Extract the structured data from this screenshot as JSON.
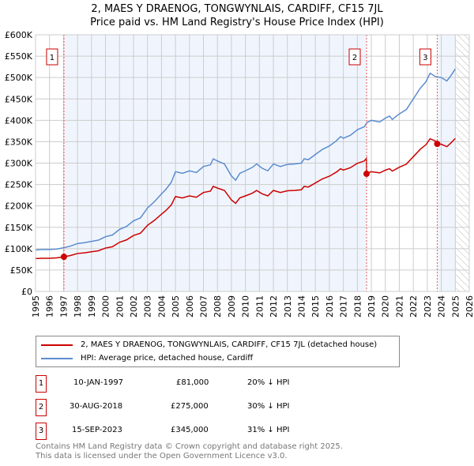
{
  "chart_data": {
    "type": "line",
    "title": "2, MAES Y DRAENOG, TONGWYNLAIS, CARDIFF, CF15 7JL",
    "subtitle": "Price paid vs. HM Land Registry's House Price Index (HPI)",
    "xlim": [
      1995,
      2026
    ],
    "ylim": [
      0,
      600000
    ],
    "x_ticks": [
      "1995",
      "1996",
      "1997",
      "1998",
      "1999",
      "2000",
      "2001",
      "2002",
      "2003",
      "2004",
      "2005",
      "2006",
      "2007",
      "2008",
      "2009",
      "2010",
      "2011",
      "2012",
      "2013",
      "2014",
      "2015",
      "2016",
      "2017",
      "2018",
      "2019",
      "2020",
      "2021",
      "2022",
      "2023",
      "2024",
      "2025",
      "2026"
    ],
    "y_ticks": [
      "£0",
      "£50K",
      "£100K",
      "£150K",
      "£200K",
      "£250K",
      "£300K",
      "£350K",
      "£400K",
      "£450K",
      "£500K",
      "£550K",
      "£600K"
    ],
    "grid": true,
    "series": [
      {
        "name": "2, MAES Y DRAENOG, TONGWYNLAIS, CARDIFF, CF15 7JL (detached house)",
        "color": "#cc0000",
        "derived_from_hpi": true
      },
      {
        "name": "HPI: Average price, detached house, Cardiff",
        "color": "#5b8ccf",
        "x": [
          1995,
          1995.5,
          1996,
          1996.5,
          1997,
          1997.5,
          1998,
          1998.5,
          1999,
          1999.5,
          2000,
          2000.5,
          2001,
          2001.5,
          2002,
          2002.5,
          2003,
          2003.5,
          2004,
          2004.3,
          2004.7,
          2005,
          2005.5,
          2006,
          2006.5,
          2007,
          2007.5,
          2007.7,
          2008,
          2008.5,
          2009,
          2009.3,
          2009.6,
          2010,
          2010.5,
          2010.8,
          2011.2,
          2011.6,
          2012,
          2012.5,
          2013,
          2013.5,
          2014,
          2014.2,
          2014.5,
          2015,
          2015.5,
          2016,
          2016.5,
          2016.8,
          2017,
          2017.5,
          2018,
          2018.5,
          2018.7,
          2019,
          2019.6,
          2020,
          2020.3,
          2020.5,
          2021,
          2021.5,
          2022,
          2022.5,
          2022.9,
          2023.2,
          2023.6,
          2024,
          2024.4,
          2024.7,
          2025
        ],
        "y": [
          97000,
          98000,
          98000,
          99000,
          102000,
          106000,
          112000,
          114000,
          117000,
          120000,
          128000,
          132000,
          145000,
          152000,
          165000,
          172000,
          195000,
          210000,
          228000,
          238000,
          255000,
          280000,
          276000,
          282000,
          278000,
          292000,
          296000,
          310000,
          305000,
          298000,
          270000,
          260000,
          276000,
          282000,
          290000,
          298000,
          288000,
          282000,
          298000,
          292000,
          297000,
          298000,
          300000,
          310000,
          308000,
          320000,
          332000,
          340000,
          352000,
          362000,
          358000,
          365000,
          378000,
          385000,
          395000,
          400000,
          396000,
          405000,
          410000,
          402000,
          415000,
          425000,
          450000,
          475000,
          490000,
          510000,
          502000,
          500000,
          492000,
          505000,
          520000
        ]
      }
    ],
    "sales": [
      {
        "label": "1",
        "x": 1997.03,
        "value": 81000,
        "date": "10-JAN-1997",
        "price": "£81,000",
        "diff": "20% ↓ HPI"
      },
      {
        "label": "2",
        "x": 2018.66,
        "value": 275000,
        "date": "30-AUG-2018",
        "price": "£275,000",
        "diff": "30% ↓ HPI"
      },
      {
        "label": "3",
        "x": 2023.71,
        "value": 345000,
        "date": "15-SEP-2023",
        "price": "£345,000",
        "diff": "31% ↓ HPI"
      }
    ],
    "legend_position": "below"
  },
  "footer": {
    "line1": "Contains HM Land Registry data © Crown copyright and database right 2025.",
    "line2": "This data is licensed under the Open Government Licence v3.0."
  }
}
